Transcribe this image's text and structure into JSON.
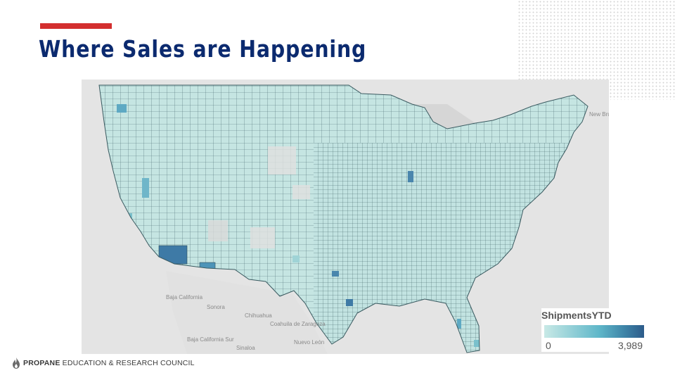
{
  "slide": {
    "title": "Where Sales are Happening",
    "accent_color": "#d32f2f",
    "title_color": "#0b2a6f"
  },
  "map": {
    "type": "choropleth",
    "region": "Contiguous United States, by county",
    "fill_low": "#c8e9e6",
    "fill_high": "#2d5b8a",
    "border_color": "#3a5a60",
    "place_labels": [
      "New Brunswick",
      "Baja California",
      "Sonora",
      "Chihuahua",
      "Coahuila de Zaragoza",
      "Baja California Sur",
      "Sinaloa",
      "Nuevo León"
    ]
  },
  "legend": {
    "title": "ShipmentsYTD",
    "min_label": "0",
    "max_label": "3,989",
    "colors": [
      "#c8e9e6",
      "#5fb7c9",
      "#3e85a8",
      "#2d5b8a"
    ]
  },
  "footer": {
    "logo_icon": "flame-icon",
    "org_bold": "PROPANE",
    "org_rest": "EDUCATION & RESEARCH COUNCIL"
  }
}
